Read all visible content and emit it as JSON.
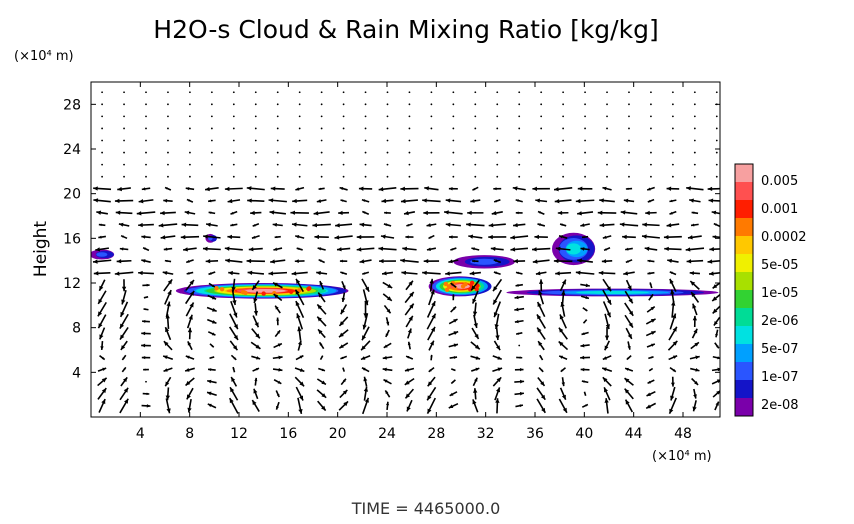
{
  "chart_data": {
    "type": "heatmap",
    "title": "H2O-s Cloud & Rain Mixing Ratio [kg/kg]",
    "xlabel": "",
    "ylabel": "Height",
    "x_unit": "(×10⁴ m)",
    "y_unit": "(×10⁴ m)",
    "xlim": [
      0,
      51
    ],
    "ylim": [
      0,
      30
    ],
    "x_ticks": [
      4,
      8,
      12,
      16,
      20,
      24,
      28,
      32,
      36,
      40,
      44,
      48
    ],
    "y_ticks": [
      4,
      8,
      12,
      16,
      20,
      24,
      28
    ],
    "time_label": "TIME  =  4465000.0",
    "colorbar": {
      "labels": [
        "0.005",
        "0.001",
        "0.0002",
        "5e-05",
        "1e-05",
        "2e-06",
        "5e-07",
        "1e-07",
        "2e-08"
      ],
      "colors": [
        "#f7a0a0",
        "#ff5050",
        "#ff1e00",
        "#ff7a00",
        "#ffc800",
        "#f0f000",
        "#a8e000",
        "#32d232",
        "#00dc96",
        "#00e1e1",
        "#00a0ff",
        "#2a55ff",
        "#1414c8",
        "#7a00aa"
      ]
    },
    "cloud_regions": [
      {
        "x": [
          7,
          21
        ],
        "y": [
          10.6,
          12
        ],
        "peak": "0.005"
      },
      {
        "x": [
          27.5,
          32.5
        ],
        "y": [
          10.8,
          12.6
        ],
        "peak": "0.005"
      },
      {
        "x": [
          33.8,
          51
        ],
        "y": [
          10.8,
          11.5
        ],
        "peak": "5e-07"
      },
      {
        "x": [
          29.5,
          34.5
        ],
        "y": [
          13.3,
          14.5
        ],
        "peak": "1e-07"
      },
      {
        "x": [
          37.5,
          41
        ],
        "y": [
          13.6,
          16.5
        ],
        "peak": "5e-07"
      },
      {
        "x": [
          0,
          2
        ],
        "y": [
          14.1,
          15
        ],
        "peak": "1e-07"
      },
      {
        "x": [
          9.4,
          10.2
        ],
        "y": [
          15.6,
          16.4
        ],
        "peak": "1e-07"
      }
    ]
  }
}
